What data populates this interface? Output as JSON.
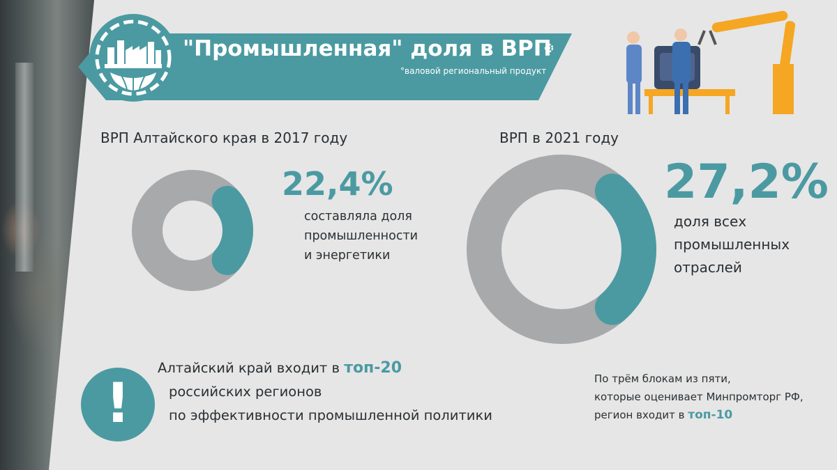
{
  "header": {
    "title": "\"Промышленная\" доля в ВРП",
    "subtitle": "°валовой региональный продукт",
    "logo_icon": "factory-globe-icon",
    "gear_icon": "gear-icon"
  },
  "colors": {
    "accent": "#4b9aa2",
    "ring": "#a8a9ab",
    "background": "#e6e6e6",
    "text": "#2a2f33"
  },
  "chart_data": [
    {
      "type": "pie",
      "title": "ВРП Алтайского края в 2017 году",
      "value": 22.4,
      "value_label": "22,4%",
      "description": [
        "составляла доля",
        "промышленности",
        "и энергетики"
      ]
    },
    {
      "type": "pie",
      "title": "ВРП в 2021 году",
      "value": 27.2,
      "value_label": "27,2%",
      "description": [
        "доля всех",
        "промышленных",
        "отраслей"
      ]
    }
  ],
  "notes": {
    "top20": {
      "line1_prefix": "Алтайский край входит в ",
      "line1_accent": "топ-20",
      "line2": "российских регионов",
      "line3": "по эффективности промышленной политики"
    },
    "top10": {
      "line1": "По трём блокам из пяти,",
      "line2": "которые оценивает Минпромторг РФ,",
      "line3_prefix": "регион входит в ",
      "line3_accent": "топ-10"
    },
    "exclamation": "!"
  }
}
